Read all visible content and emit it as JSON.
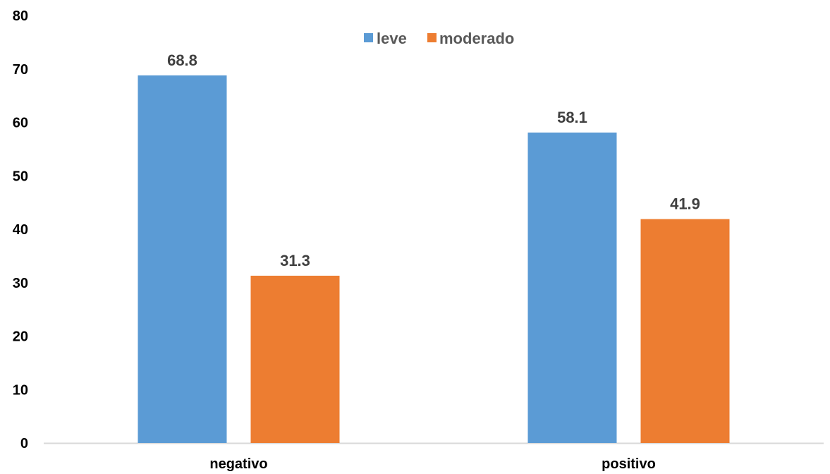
{
  "chart_data": {
    "type": "bar",
    "categories": [
      "negativo",
      "positivo"
    ],
    "series": [
      {
        "name": "leve",
        "values": [
          68.8,
          58.1
        ],
        "color": "#5B9BD5"
      },
      {
        "name": "moderado",
        "values": [
          31.3,
          41.9
        ],
        "color": "#ED7D31"
      }
    ],
    "data_labels": [
      [
        "68.8",
        "58.1"
      ],
      [
        "31.3",
        "41.9"
      ]
    ],
    "title": "",
    "xlabel": "",
    "ylabel": "",
    "ylim": [
      0,
      80
    ],
    "yticks": [
      0,
      10,
      20,
      30,
      40,
      50,
      60,
      70,
      80
    ],
    "ytick_labels": [
      "0",
      "10",
      "20",
      "30",
      "40",
      "50",
      "60",
      "70",
      "80"
    ],
    "grid": false,
    "legend_position": "top-center",
    "axis_color": "#D9D9D9"
  }
}
